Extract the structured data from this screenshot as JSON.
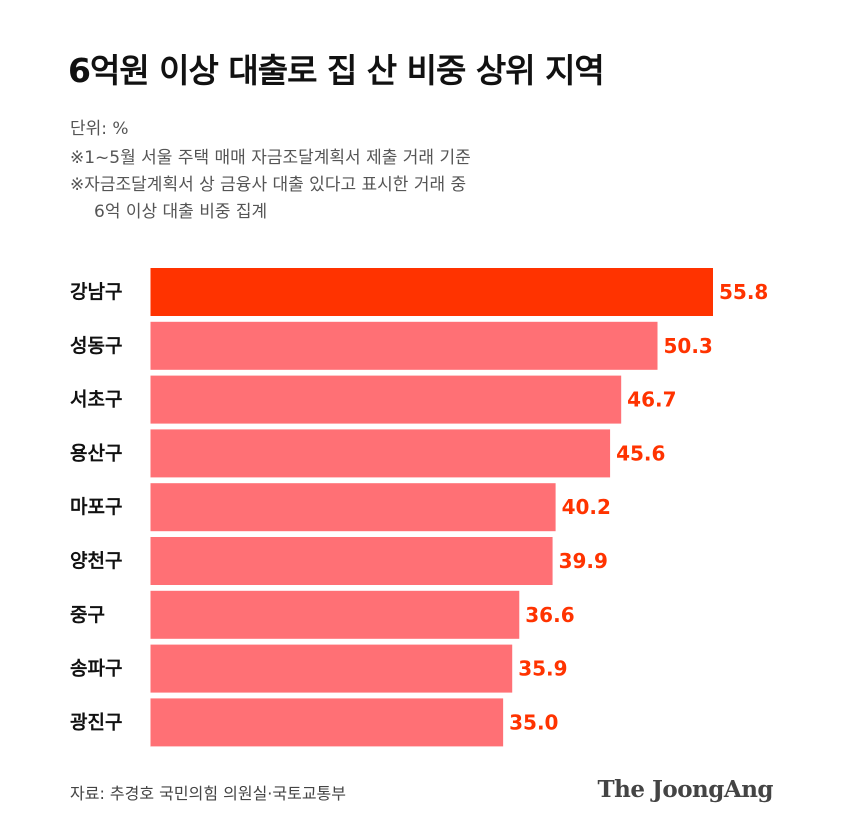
{
  "header": {
    "title": "6억원 이상 대출로 집 산 비중 상위 지역",
    "unit": "단위: %",
    "notes": [
      "※1~5월 서울 주택 매매 자금조달계획서 제출 거래 기준",
      "※자금조달계획서 상 금융사 대출 있다고 표시한 거래 중",
      "6억 이상 대출 비중 집계"
    ]
  },
  "footer": {
    "source": "자료: 추경호 국민의힘 의원실·국토교통부",
    "logo": "The JoongAng"
  },
  "colors": {
    "highlight": "#ff3300",
    "bar": "#ff7075",
    "label": "#ff3300",
    "category": "#111111"
  },
  "chart_data": {
    "type": "bar",
    "orientation": "horizontal",
    "title": "6억원 이상 대출로 집 산 비중 상위 지역",
    "unit": "%",
    "categories": [
      "강남구",
      "성동구",
      "서초구",
      "용산구",
      "마포구",
      "양천구",
      "중구",
      "송파구",
      "광진구"
    ],
    "values": [
      55.8,
      50.3,
      46.7,
      45.6,
      40.2,
      39.9,
      36.6,
      35.9,
      35.0
    ],
    "value_labels": [
      "55.8",
      "50.3",
      "46.7",
      "45.6",
      "40.2",
      "39.9",
      "36.6",
      "35.9",
      "35.0"
    ],
    "highlight_index": 0,
    "xlim": [
      0,
      55.8
    ],
    "grid": false,
    "legend": "none"
  }
}
